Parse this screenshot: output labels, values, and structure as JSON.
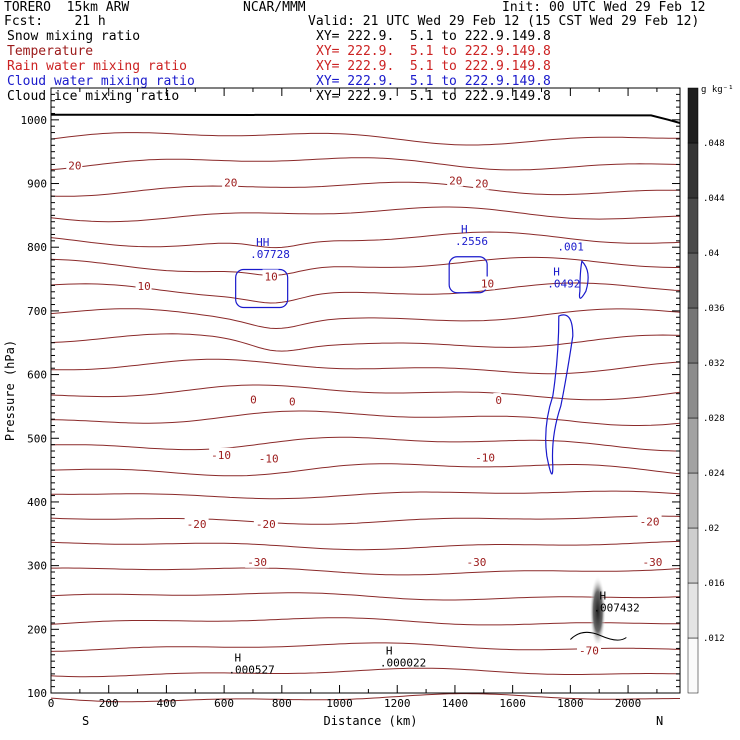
{
  "header": {
    "model": "TORERO  15km ARW",
    "center": "NCAR/MMM",
    "init": "Init: 00 UTC Wed 29 Feb 12",
    "fcst": "Fcst:    21 h",
    "valid": "Valid: 21 UTC Wed 29 Feb 12 (15 CST Wed 29 Feb 12)"
  },
  "fields": [
    {
      "name": "Snow mixing ratio",
      "xy": "",
      "color": "#000000"
    },
    {
      "name": "Temperature",
      "xy": "XY= 222.9.  5.1 to 222.9.149.8",
      "color": "#9b1a1a"
    },
    {
      "name": "Rain water mixing ratio",
      "xy": "XY= 222.9.  5.1 to 222.9.149.8",
      "color": "#cc2222"
    },
    {
      "name": "Cloud water mixing ratio",
      "xy": "XY= 222.9.  5.1 to 222.9.149.8",
      "color": "#1a1acc"
    },
    {
      "name": "Cloud ice mixing ratio",
      "xy": "XY= 222.9.  5.1 to 222.9.149.8",
      "color": "#000000"
    }
  ],
  "snow_xy": "XY= 222.9.  5.1 to 222.9.149.8",
  "chart_data": {
    "type": "cross-section contour",
    "xlabel": "Distance (km)",
    "ylabel": "Pressure (hPa)",
    "xlim": [
      0,
      2180
    ],
    "ylim": [
      1050,
      100
    ],
    "xticks": [
      0,
      200,
      400,
      600,
      800,
      1000,
      1200,
      1400,
      1600,
      1800,
      2000
    ],
    "yticks": [
      100,
      200,
      300,
      400,
      500,
      600,
      700,
      800,
      900,
      1000
    ],
    "x_end_labels": {
      "left": "S",
      "right": "N"
    },
    "colorbar": {
      "units": "g kg⁻¹",
      "ticks": [
        ".012",
        ".016",
        ".02",
        ".024",
        ".028",
        ".032",
        ".036",
        ".04",
        ".044",
        ".048"
      ],
      "values": [
        0.012,
        0.016,
        0.02,
        0.024,
        0.028,
        0.032,
        0.036,
        0.04,
        0.044,
        0.048
      ]
    },
    "temperature_contour_labels": [
      {
        "text": "-70",
        "x": 1830,
        "p": 167
      },
      {
        "text": "-30",
        "x": 680,
        "p": 306
      },
      {
        "text": "-30",
        "x": 1440,
        "p": 306
      },
      {
        "text": "-30",
        "x": 2050,
        "p": 306
      },
      {
        "text": "-20",
        "x": 470,
        "p": 365
      },
      {
        "text": "-20",
        "x": 710,
        "p": 365
      },
      {
        "text": "-20",
        "x": 2040,
        "p": 369
      },
      {
        "text": "-10",
        "x": 555,
        "p": 474
      },
      {
        "text": "-10",
        "x": 720,
        "p": 468
      },
      {
        "text": "-10",
        "x": 1470,
        "p": 470
      },
      {
        "text": "0",
        "x": 690,
        "p": 561
      },
      {
        "text": "0",
        "x": 825,
        "p": 558
      },
      {
        "text": "0",
        "x": 1540,
        "p": 560
      },
      {
        "text": "10",
        "x": 300,
        "p": 739
      },
      {
        "text": "10",
        "x": 1490,
        "p": 743
      },
      {
        "text": "10",
        "x": 740,
        "p": 754
      },
      {
        "text": "20",
        "x": 60,
        "p": 928
      },
      {
        "text": "20",
        "x": 600,
        "p": 902
      },
      {
        "text": "20",
        "x": 1380,
        "p": 905
      },
      {
        "text": "20",
        "x": 1470,
        "p": 900
      }
    ],
    "maxima_labels": [
      {
        "text": ".000527",
        "x": 615,
        "p": 134,
        "mark": "H",
        "color": "#000000"
      },
      {
        "text": ".000022",
        "x": 1140,
        "p": 145,
        "mark": "H",
        "color": "#000000"
      },
      {
        "text": ".007432",
        "x": 1880,
        "p": 231,
        "mark": "H",
        "color": "#000000"
      },
      {
        "text": ".07728",
        "x": 690,
        "p": 786,
        "mark": "HH",
        "color": "#1a1acc"
      },
      {
        "text": ".2556",
        "x": 1400,
        "p": 807,
        "mark": "H",
        "color": "#1a1acc"
      },
      {
        "text": ".0492",
        "x": 1720,
        "p": 740,
        "mark": "H",
        "color": "#1a1acc"
      },
      {
        "text": ".001",
        "x": 1755,
        "p": 798,
        "mark": "",
        "color": "#1a1acc"
      }
    ]
  }
}
